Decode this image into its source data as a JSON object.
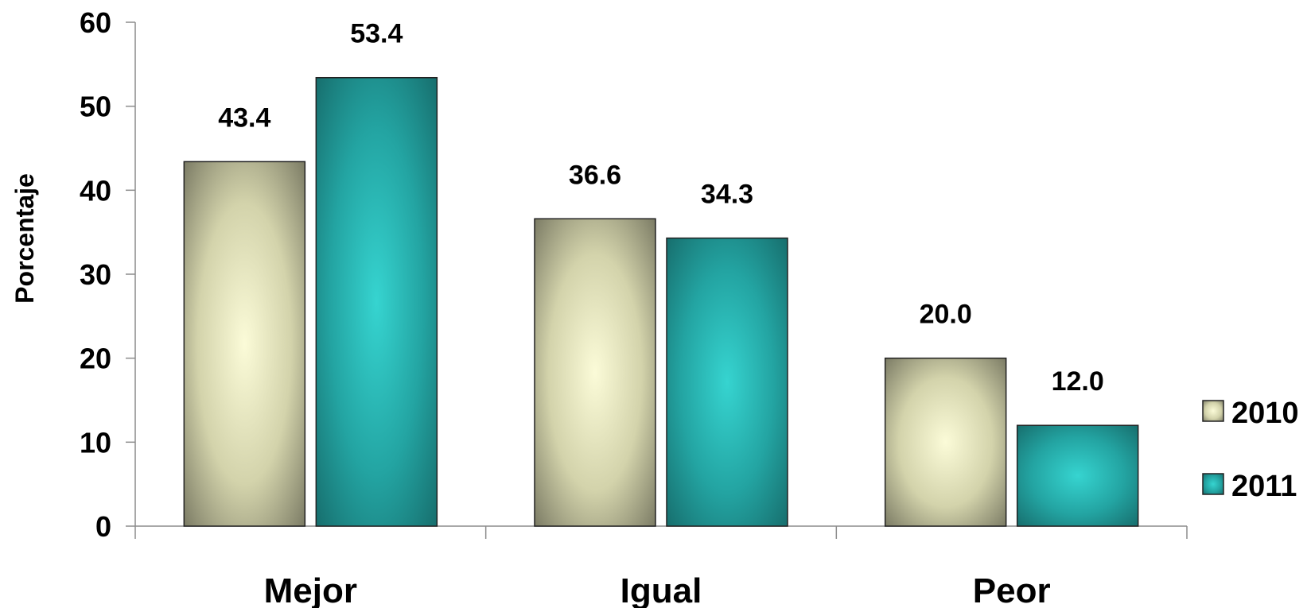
{
  "chart_data": {
    "type": "bar",
    "categories": [
      "Mejor",
      "Igual",
      "Peor"
    ],
    "series": [
      {
        "name": "2010",
        "values": [
          43.4,
          36.6,
          20.0
        ],
        "labels": [
          "43.4",
          "36.6",
          "20.0"
        ],
        "color": "#eeeebf",
        "edge": "#7a7a63"
      },
      {
        "name": "2011",
        "values": [
          53.4,
          34.3,
          12.0
        ],
        "labels": [
          "53.4",
          "34.3",
          "12.0"
        ],
        "color": "#33c9c6",
        "edge": "#186b6a"
      }
    ],
    "xlabel": "",
    "ylabel": "Porcentaje",
    "ylim": [
      0,
      60
    ],
    "yticks": [
      "0",
      "10",
      "20",
      "30",
      "40",
      "50",
      "60"
    ],
    "grid": false,
    "legend": "right"
  }
}
